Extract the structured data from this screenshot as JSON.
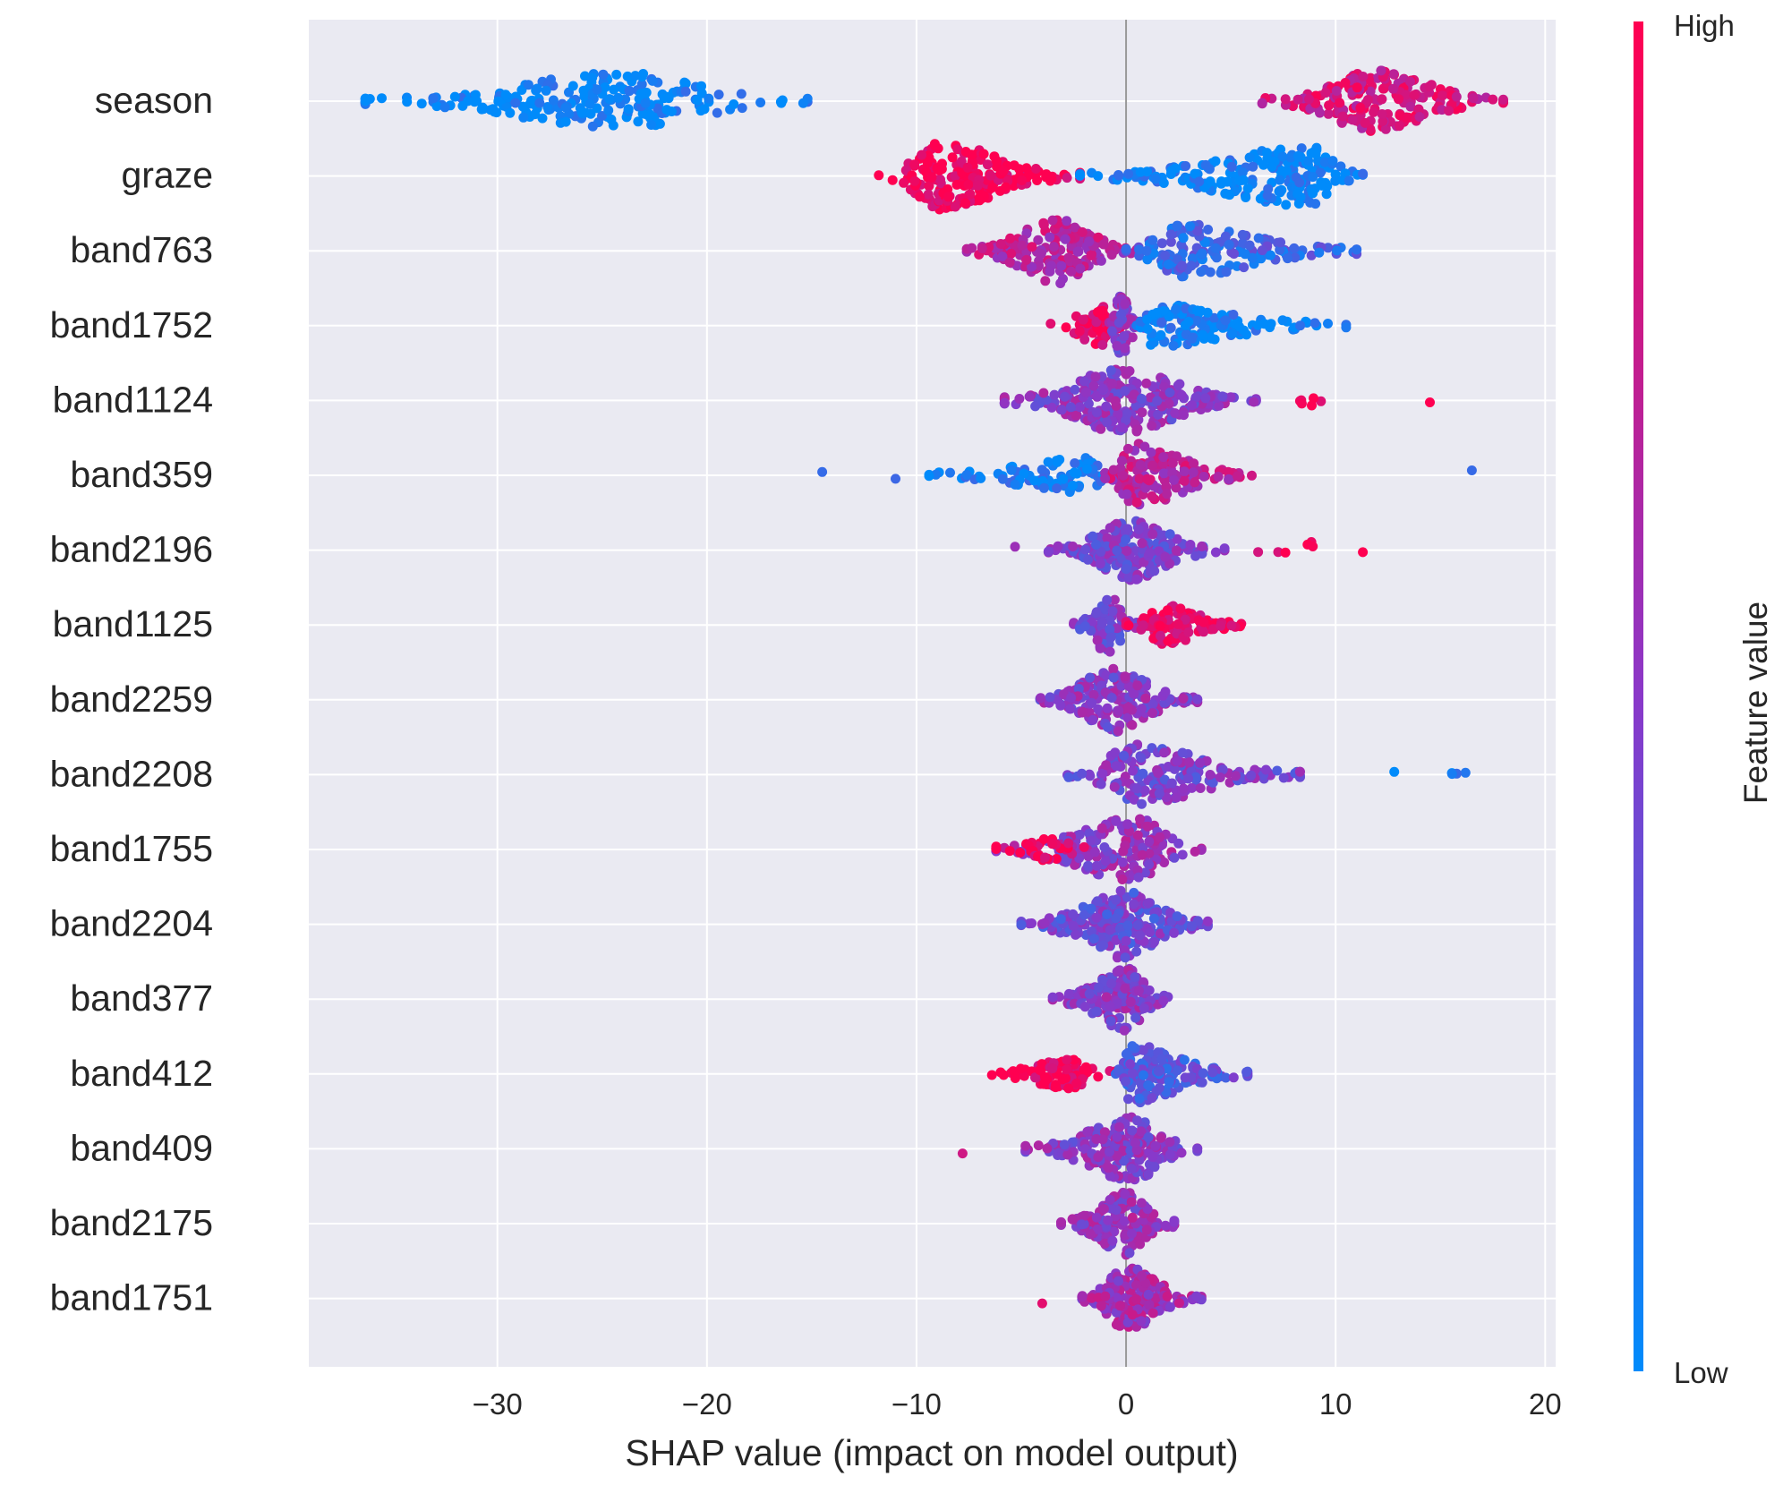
{
  "chart_data": {
    "type": "scatter",
    "subtype": "shap-beeswarm",
    "xlabel": "SHAP value (impact on model output)",
    "xlim": [
      -39,
      20.5
    ],
    "xticks": [
      -30,
      -20,
      -10,
      0,
      10,
      20
    ],
    "xtick_labels": [
      "−30",
      "−20",
      "−10",
      "0",
      "10",
      "20"
    ],
    "grid": true,
    "zero_line": 0,
    "colorbar": {
      "label": "Feature value",
      "high_label": "High",
      "low_label": "Low",
      "low_color": "#008bfb",
      "mid_color": "#8a38c9",
      "high_color": "#ff0051"
    },
    "features": [
      {
        "name": "season",
        "segments": [
          {
            "start": -36.3,
            "end": -15.2,
            "center": -24.0,
            "width": 1.05,
            "count": 220,
            "value": 0.02
          },
          {
            "start": 6.5,
            "end": 18.0,
            "center": 12.0,
            "width": 1.15,
            "count": 200,
            "value": 0.82
          }
        ]
      },
      {
        "name": "graze",
        "segments": [
          {
            "start": -11.8,
            "end": -2.2,
            "center": -8.8,
            "width": 1.25,
            "count": 180,
            "value": 0.97
          },
          {
            "start": -2.2,
            "end": 11.3,
            "center": 8.8,
            "width": 1.1,
            "count": 200,
            "value": 0.03
          }
        ]
      },
      {
        "name": "band763",
        "segments": [
          {
            "start": -7.6,
            "end": 0.5,
            "center": -3.2,
            "width": 1.2,
            "count": 170,
            "value": 0.7
          },
          {
            "start": 0.0,
            "end": 11.0,
            "center": 2.5,
            "width": 1.0,
            "count": 160,
            "value": 0.22
          }
        ]
      },
      {
        "name": "band1752",
        "segments": [
          {
            "start": -3.6,
            "end": -0.3,
            "center": -1.2,
            "width": 0.7,
            "count": 60,
            "value": 0.92
          },
          {
            "start": -0.8,
            "end": 0.9,
            "center": -0.3,
            "width": 1.1,
            "count": 60,
            "value": 0.5
          },
          {
            "start": 0.5,
            "end": 10.5,
            "center": 1.2,
            "width": 0.75,
            "count": 130,
            "value": 0.05
          }
        ]
      },
      {
        "name": "band1124",
        "segments": [
          {
            "start": -5.8,
            "end": 6.2,
            "center": -0.3,
            "width": 1.2,
            "count": 260,
            "value": 0.5
          },
          {
            "start": 8.3,
            "end": 9.3,
            "center": 8.8,
            "width": 0.3,
            "count": 6,
            "value": 0.95
          },
          {
            "start": 14.5,
            "end": 14.5,
            "center": 14.5,
            "width": 0.1,
            "count": 1,
            "value": 0.95
          }
        ]
      },
      {
        "name": "band359",
        "segments": [
          {
            "start": -14.5,
            "end": -14.5,
            "center": -14.5,
            "width": 0.1,
            "count": 1,
            "value": 0.05
          },
          {
            "start": -11.0,
            "end": -11.0,
            "center": -11.0,
            "width": 0.1,
            "count": 1,
            "value": 0.05
          },
          {
            "start": -9.4,
            "end": -0.5,
            "center": -2.0,
            "width": 0.6,
            "count": 90,
            "value": 0.05
          },
          {
            "start": -1.0,
            "end": 6.0,
            "center": 0.3,
            "width": 1.2,
            "count": 160,
            "value": 0.7
          },
          {
            "start": 16.5,
            "end": 16.5,
            "center": 16.5,
            "width": 0.1,
            "count": 1,
            "value": 0.05
          }
        ]
      },
      {
        "name": "band2196",
        "segments": [
          {
            "start": -5.3,
            "end": -5.3,
            "center": -5.3,
            "width": 0.1,
            "count": 1,
            "value": 0.6
          },
          {
            "start": -3.7,
            "end": 4.7,
            "center": 0.2,
            "width": 1.1,
            "count": 200,
            "value": 0.45
          },
          {
            "start": 6.3,
            "end": 11.3,
            "center": 9.0,
            "width": 0.25,
            "count": 7,
            "value": 0.95
          }
        ]
      },
      {
        "name": "band1125",
        "segments": [
          {
            "start": -2.5,
            "end": 0.5,
            "center": -0.8,
            "width": 1.1,
            "count": 70,
            "value": 0.45
          },
          {
            "start": 0.0,
            "end": 5.5,
            "center": 1.8,
            "width": 0.7,
            "count": 100,
            "value": 0.92
          }
        ]
      },
      {
        "name": "band2259",
        "segments": [
          {
            "start": -4.1,
            "end": 3.4,
            "center": -0.6,
            "width": 1.2,
            "count": 190,
            "value": 0.5
          }
        ]
      },
      {
        "name": "band2208",
        "segments": [
          {
            "start": -2.8,
            "end": 8.3,
            "center": 0.4,
            "width": 1.1,
            "count": 180,
            "value": 0.45
          },
          {
            "start": 12.8,
            "end": 16.2,
            "center": 15.0,
            "width": 0.3,
            "count": 5,
            "value": 0.05
          }
        ]
      },
      {
        "name": "band1755",
        "segments": [
          {
            "start": -6.2,
            "end": 3.6,
            "center": 0.5,
            "width": 1.2,
            "count": 180,
            "value": 0.55
          },
          {
            "start": -6.2,
            "end": -2.0,
            "center": -3.5,
            "width": 0.4,
            "count": 30,
            "value": 0.95
          }
        ]
      },
      {
        "name": "band2204",
        "segments": [
          {
            "start": -5.0,
            "end": 3.9,
            "center": -0.1,
            "width": 1.25,
            "count": 220,
            "value": 0.4
          }
        ]
      },
      {
        "name": "band377",
        "segments": [
          {
            "start": -3.5,
            "end": 2.0,
            "center": 0.0,
            "width": 1.15,
            "count": 170,
            "value": 0.5
          }
        ]
      },
      {
        "name": "band412",
        "segments": [
          {
            "start": -6.4,
            "end": -0.5,
            "center": -2.8,
            "width": 0.5,
            "count": 80,
            "value": 0.95
          },
          {
            "start": -0.5,
            "end": 5.8,
            "center": 0.2,
            "width": 1.1,
            "count": 150,
            "value": 0.3
          }
        ]
      },
      {
        "name": "band409",
        "segments": [
          {
            "start": -7.8,
            "end": -7.8,
            "center": -7.8,
            "width": 0.1,
            "count": 1,
            "value": 0.95
          },
          {
            "start": -4.8,
            "end": 3.4,
            "center": 0.3,
            "width": 1.2,
            "count": 200,
            "value": 0.5
          }
        ]
      },
      {
        "name": "band2175",
        "segments": [
          {
            "start": -3.1,
            "end": 2.3,
            "center": 0.0,
            "width": 1.15,
            "count": 160,
            "value": 0.55
          }
        ]
      },
      {
        "name": "band1751",
        "segments": [
          {
            "start": -4.0,
            "end": -4.0,
            "center": -4.0,
            "width": 0.1,
            "count": 1,
            "value": 0.95
          },
          {
            "start": -2.1,
            "end": 3.6,
            "center": 0.0,
            "width": 1.15,
            "count": 170,
            "value": 0.6
          }
        ]
      }
    ]
  }
}
